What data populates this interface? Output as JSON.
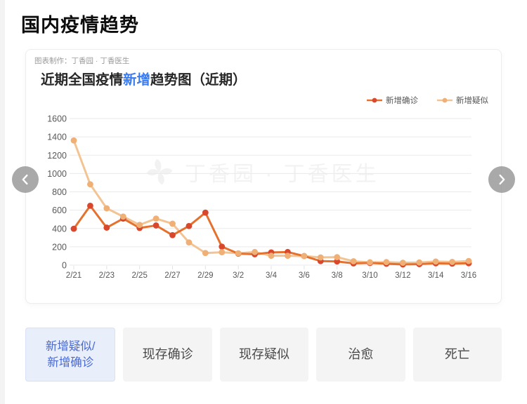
{
  "page": {
    "title": "国内疫情趋势"
  },
  "card": {
    "credit": "图表制作：丁香园 · 丁香医生",
    "chart_title": {
      "prefix": "近期全国疫情",
      "highlight": "新增",
      "suffix": "趋势图（近期）"
    },
    "watermark": "丁香园 · 丁香医生"
  },
  "chart_data": {
    "type": "line",
    "title": "近期全国疫情新增趋势图（近期）",
    "x": [
      "2/21",
      "2/22",
      "2/23",
      "2/24",
      "2/25",
      "2/26",
      "2/27",
      "2/28",
      "2/29",
      "3/1",
      "3/2",
      "3/3",
      "3/4",
      "3/5",
      "3/6",
      "3/7",
      "3/8",
      "3/9",
      "3/10",
      "3/11",
      "3/12",
      "3/13",
      "3/14",
      "3/15",
      "3/16"
    ],
    "x_tick_every": 2,
    "ylim": [
      0,
      1600
    ],
    "ytick_step": 200,
    "grid": true,
    "legend_position": "top-right",
    "series": [
      {
        "name": "新增确诊",
        "line_color": "#e4712e",
        "dot_color": "#d9472c",
        "values": [
          397,
          648,
          409,
          508,
          406,
          433,
          327,
          427,
          573,
          202,
          125,
          119,
          139,
          143,
          99,
          44,
          40,
          19,
          24,
          15,
          8,
          11,
          20,
          16,
          21
        ]
      },
      {
        "name": "新增疑似",
        "line_color": "#f3c493",
        "dot_color": "#f0af74",
        "values": [
          1361,
          882,
          620,
          530,
          439,
          508,
          452,
          248,
          132,
          141,
          129,
          143,
          102,
          102,
          99,
          84,
          87,
          42,
          31,
          33,
          26,
          29,
          39,
          35,
          45
        ]
      }
    ]
  },
  "nav": {
    "prev_icon": "chevron-left",
    "next_icon": "chevron-right"
  },
  "tabs": [
    {
      "line1": "新增疑似/",
      "line2": "新增确诊",
      "selected": true
    },
    {
      "label": "现存确诊",
      "selected": false
    },
    {
      "label": "现存疑似",
      "selected": false
    },
    {
      "label": "治愈",
      "selected": false
    },
    {
      "label": "死亡",
      "selected": false
    }
  ]
}
